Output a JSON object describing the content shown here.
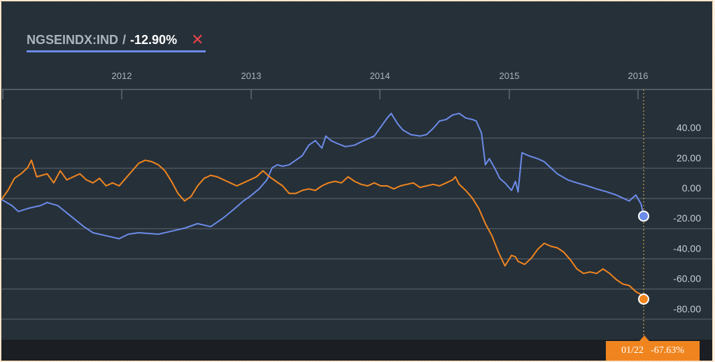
{
  "legend": {
    "symbol": "NGSEINDX:IND",
    "separator": "/",
    "change": "-12.90%",
    "close_glyph": "✕"
  },
  "colors": {
    "background": "#263039",
    "grid": "#5d6670",
    "series_primary": "#6b8be8",
    "series_secondary": "#f0851f",
    "close": "#e8434a"
  },
  "readout": {
    "date": "01/22",
    "value": "-67.63%"
  },
  "chart_data": {
    "type": "line",
    "x_ticks": [
      "2012",
      "2013",
      "2014",
      "2015",
      "2016"
    ],
    "y_ticks": [
      "40.00",
      "20.00",
      "0.00",
      "-20.00",
      "-40.00",
      "-60.00",
      "-80.00"
    ],
    "ylim": [
      -90,
      55
    ],
    "xlim": [
      2011.15,
      2016.13
    ],
    "grid": true,
    "series": [
      {
        "color": "#6b8be8",
        "end_value": -20,
        "points": [
          [
            2011.15,
            -9
          ],
          [
            2011.23,
            -13
          ],
          [
            2011.28,
            -17
          ],
          [
            2011.35,
            -15
          ],
          [
            2011.45,
            -13
          ],
          [
            2011.5,
            -11
          ],
          [
            2011.58,
            -13
          ],
          [
            2011.68,
            -20
          ],
          [
            2011.78,
            -27
          ],
          [
            2011.85,
            -31
          ],
          [
            2011.95,
            -33
          ],
          [
            2012.05,
            -35
          ],
          [
            2012.12,
            -32
          ],
          [
            2012.2,
            -31
          ],
          [
            2012.35,
            -32
          ],
          [
            2012.45,
            -30
          ],
          [
            2012.55,
            -28
          ],
          [
            2012.65,
            -25
          ],
          [
            2012.75,
            -27
          ],
          [
            2012.85,
            -21
          ],
          [
            2012.92,
            -16
          ],
          [
            2013.0,
            -10
          ],
          [
            2013.05,
            -7
          ],
          [
            2013.12,
            -2
          ],
          [
            2013.18,
            4
          ],
          [
            2013.22,
            12
          ],
          [
            2013.26,
            14
          ],
          [
            2013.3,
            13
          ],
          [
            2013.35,
            14
          ],
          [
            2013.4,
            17
          ],
          [
            2013.45,
            20
          ],
          [
            2013.5,
            27
          ],
          [
            2013.55,
            30
          ],
          [
            2013.6,
            25
          ],
          [
            2013.63,
            33
          ],
          [
            2013.67,
            30
          ],
          [
            2013.72,
            28
          ],
          [
            2013.78,
            26
          ],
          [
            2013.85,
            27
          ],
          [
            2013.92,
            30
          ],
          [
            2014.0,
            33
          ],
          [
            2014.05,
            39
          ],
          [
            2014.1,
            45
          ],
          [
            2014.13,
            48
          ],
          [
            2014.18,
            41
          ],
          [
            2014.22,
            37
          ],
          [
            2014.28,
            34
          ],
          [
            2014.35,
            33
          ],
          [
            2014.4,
            34
          ],
          [
            2014.45,
            38
          ],
          [
            2014.5,
            43
          ],
          [
            2014.55,
            44
          ],
          [
            2014.6,
            47
          ],
          [
            2014.65,
            48
          ],
          [
            2014.7,
            45
          ],
          [
            2014.75,
            44
          ],
          [
            2014.78,
            43
          ],
          [
            2014.82,
            35
          ],
          [
            2014.85,
            14
          ],
          [
            2014.88,
            18
          ],
          [
            2014.92,
            12
          ],
          [
            2014.96,
            5
          ],
          [
            2015.0,
            2
          ],
          [
            2015.05,
            -3
          ],
          [
            2015.08,
            3
          ],
          [
            2015.1,
            -4
          ],
          [
            2015.13,
            22
          ],
          [
            2015.18,
            20
          ],
          [
            2015.25,
            18
          ],
          [
            2015.3,
            16
          ],
          [
            2015.35,
            12
          ],
          [
            2015.4,
            8
          ],
          [
            2015.48,
            4
          ],
          [
            2015.55,
            2
          ],
          [
            2015.63,
            0
          ],
          [
            2015.7,
            -2
          ],
          [
            2015.78,
            -4
          ],
          [
            2015.85,
            -6
          ],
          [
            2015.9,
            -8
          ],
          [
            2015.95,
            -10
          ],
          [
            2016.0,
            -6
          ],
          [
            2016.04,
            -12
          ],
          [
            2016.06,
            -20
          ]
        ]
      },
      {
        "color": "#f0851f",
        "end_value": -75,
        "points": [
          [
            2011.15,
            -9
          ],
          [
            2011.2,
            -3
          ],
          [
            2011.25,
            5
          ],
          [
            2011.3,
            8
          ],
          [
            2011.35,
            12
          ],
          [
            2011.38,
            17
          ],
          [
            2011.42,
            6
          ],
          [
            2011.5,
            8
          ],
          [
            2011.55,
            2
          ],
          [
            2011.6,
            10
          ],
          [
            2011.65,
            4
          ],
          [
            2011.7,
            6
          ],
          [
            2011.75,
            8
          ],
          [
            2011.8,
            4
          ],
          [
            2011.85,
            2
          ],
          [
            2011.9,
            5
          ],
          [
            2011.95,
            0
          ],
          [
            2012.0,
            2
          ],
          [
            2012.05,
            0
          ],
          [
            2012.1,
            5
          ],
          [
            2012.15,
            10
          ],
          [
            2012.2,
            15
          ],
          [
            2012.25,
            17
          ],
          [
            2012.3,
            16
          ],
          [
            2012.35,
            14
          ],
          [
            2012.4,
            10
          ],
          [
            2012.45,
            3
          ],
          [
            2012.5,
            -5
          ],
          [
            2012.55,
            -10
          ],
          [
            2012.6,
            -7
          ],
          [
            2012.65,
            0
          ],
          [
            2012.7,
            5
          ],
          [
            2012.75,
            7
          ],
          [
            2012.8,
            6
          ],
          [
            2012.85,
            4
          ],
          [
            2012.9,
            2
          ],
          [
            2012.95,
            0
          ],
          [
            2013.0,
            2
          ],
          [
            2013.05,
            4
          ],
          [
            2013.1,
            6
          ],
          [
            2013.15,
            10
          ],
          [
            2013.2,
            6
          ],
          [
            2013.25,
            3
          ],
          [
            2013.3,
            0
          ],
          [
            2013.35,
            -5
          ],
          [
            2013.4,
            -5
          ],
          [
            2013.45,
            -3
          ],
          [
            2013.5,
            -2
          ],
          [
            2013.55,
            -3
          ],
          [
            2013.6,
            0
          ],
          [
            2013.65,
            2
          ],
          [
            2013.7,
            3
          ],
          [
            2013.75,
            2
          ],
          [
            2013.8,
            6
          ],
          [
            2013.85,
            3
          ],
          [
            2013.9,
            1
          ],
          [
            2013.95,
            0
          ],
          [
            2014.0,
            2
          ],
          [
            2014.05,
            0
          ],
          [
            2014.1,
            0
          ],
          [
            2014.15,
            -2
          ],
          [
            2014.2,
            0
          ],
          [
            2014.25,
            1
          ],
          [
            2014.3,
            2
          ],
          [
            2014.35,
            -1
          ],
          [
            2014.4,
            0
          ],
          [
            2014.45,
            1
          ],
          [
            2014.5,
            0
          ],
          [
            2014.55,
            2
          ],
          [
            2014.6,
            4
          ],
          [
            2014.62,
            6
          ],
          [
            2014.65,
            1
          ],
          [
            2014.7,
            -3
          ],
          [
            2014.75,
            -8
          ],
          [
            2014.8,
            -15
          ],
          [
            2014.85,
            -25
          ],
          [
            2014.9,
            -33
          ],
          [
            2014.95,
            -44
          ],
          [
            2015.0,
            -53
          ],
          [
            2015.05,
            -46
          ],
          [
            2015.08,
            -47
          ],
          [
            2015.1,
            -50
          ],
          [
            2015.15,
            -52
          ],
          [
            2015.2,
            -48
          ],
          [
            2015.25,
            -42
          ],
          [
            2015.3,
            -38
          ],
          [
            2015.35,
            -40
          ],
          [
            2015.4,
            -41
          ],
          [
            2015.45,
            -44
          ],
          [
            2015.5,
            -49
          ],
          [
            2015.55,
            -55
          ],
          [
            2015.6,
            -58
          ],
          [
            2015.65,
            -57
          ],
          [
            2015.7,
            -58
          ],
          [
            2015.75,
            -55
          ],
          [
            2015.8,
            -58
          ],
          [
            2015.85,
            -62
          ],
          [
            2015.9,
            -65
          ],
          [
            2015.95,
            -66
          ],
          [
            2016.0,
            -70
          ],
          [
            2016.04,
            -72
          ],
          [
            2016.06,
            -75
          ]
        ]
      }
    ]
  }
}
